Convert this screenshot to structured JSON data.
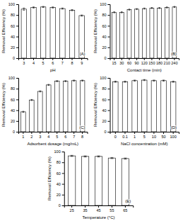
{
  "chart_data": [
    {
      "type": "bar",
      "annotation": "(A)",
      "xlabel": "pH",
      "ylabel": "Removal Efficiency (%)",
      "categories": [
        "3",
        "4",
        "5",
        "6",
        "7",
        "8",
        "9"
      ],
      "values": [
        91,
        94,
        95,
        94,
        92,
        89,
        79
      ],
      "errors": [
        2,
        1,
        1,
        1,
        1,
        1,
        1
      ],
      "color": "white",
      "ylim": [
        0,
        100
      ],
      "yticks": [
        0,
        20,
        40,
        60,
        80,
        100
      ]
    },
    {
      "type": "bar",
      "annotation": "(B)",
      "xlabel": "Contact time (min)",
      "ylabel": "Removal Efficiency (%)",
      "categories": [
        "15",
        "30",
        "60",
        "90",
        "120",
        "150",
        "180",
        "210",
        "240"
      ],
      "values": [
        85,
        85,
        90,
        91,
        92,
        93,
        93,
        94,
        95
      ],
      "errors": [
        1,
        1,
        1,
        1,
        1,
        1,
        1,
        1,
        1
      ],
      "color": "white",
      "ylim": [
        0,
        100
      ],
      "yticks": [
        0,
        20,
        40,
        60,
        80,
        100
      ]
    },
    {
      "type": "bar",
      "annotation": "(C)",
      "xlabel": "Adsorbent dosage (mg/mL)",
      "ylabel": "Removal Efficiency (%)",
      "categories": [
        "1",
        "2",
        "3",
        "4",
        "5",
        "6",
        "7",
        "8"
      ],
      "values": [
        37,
        59,
        75,
        87,
        94,
        94,
        95,
        95
      ],
      "errors": [
        1,
        1,
        1,
        1,
        1,
        1,
        1,
        1
      ],
      "color": "white",
      "ylim": [
        0,
        100
      ],
      "yticks": [
        0,
        20,
        40,
        60,
        80,
        100
      ]
    },
    {
      "type": "bar",
      "annotation": "(D)",
      "xlabel": "NaCl concentration (mM)",
      "ylabel": "Removal Efficiency (%)",
      "categories": [
        "0",
        "0.1",
        "1",
        "5",
        "10",
        "50",
        "100"
      ],
      "values": [
        93,
        93,
        95,
        96,
        95,
        95,
        93
      ],
      "errors": [
        1,
        1,
        1,
        1,
        1,
        1,
        1
      ],
      "color": "white",
      "ylim": [
        0,
        100
      ],
      "yticks": [
        0,
        20,
        40,
        60,
        80,
        100
      ]
    },
    {
      "type": "bar",
      "annotation": "(E)",
      "xlabel": "Temperature (°C)",
      "ylabel": "Removal Efficiency (%)",
      "categories": [
        "25",
        "35",
        "45",
        "55",
        "65"
      ],
      "values": [
        92,
        91,
        91,
        88,
        87
      ],
      "errors": [
        1,
        1,
        1,
        1,
        1
      ],
      "color": "white",
      "ylim": [
        0,
        100
      ],
      "yticks": [
        0,
        20,
        40,
        60,
        80,
        100
      ]
    }
  ]
}
